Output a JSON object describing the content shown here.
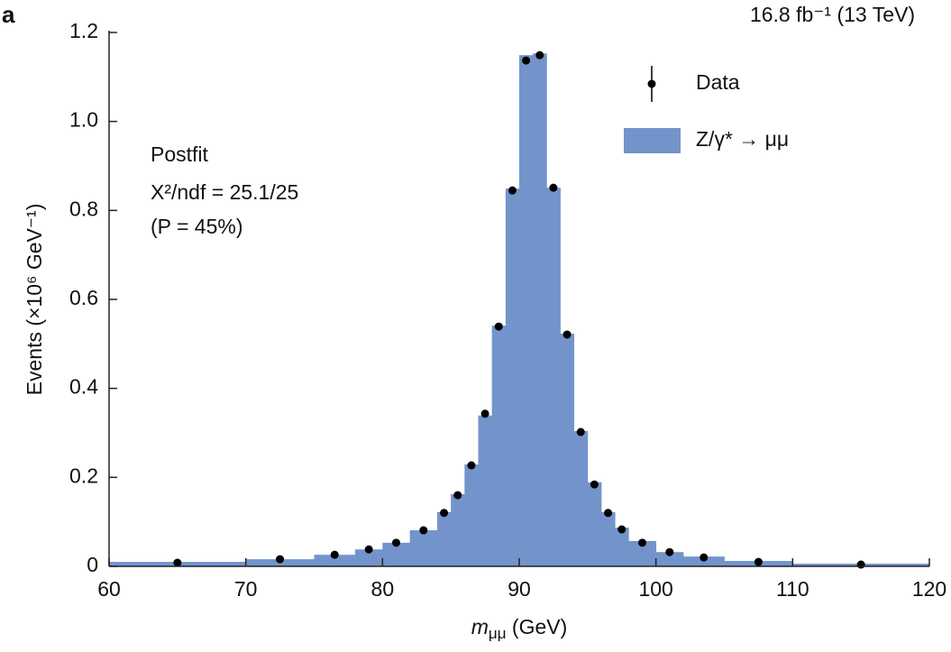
{
  "chart_data": {
    "type": "histogram",
    "panel_label": "a",
    "subtitle": "16.8 fb⁻¹ (13 TeV)",
    "y_label": "Events (×10⁶ GeV⁻¹)",
    "x_label": "m",
    "x_label_sub": "μμ",
    "x_label_unit": " (GeV)",
    "annotations": [
      "Postfit",
      "X²/ndf = 25.1/25",
      "(P = 45%)"
    ],
    "bins": [
      60,
      70,
      75,
      78,
      80,
      82,
      84,
      85,
      86,
      87,
      88,
      89,
      90,
      91,
      92,
      93,
      94,
      95,
      96,
      97,
      98,
      100,
      102,
      105,
      110,
      120
    ],
    "series": [
      {
        "name": "Z/γ* → μμ",
        "type": "histogram",
        "color": "#7394cb",
        "values": [
          0.01,
          0.016,
          0.026,
          0.038,
          0.053,
          0.081,
          0.122,
          0.162,
          0.229,
          0.339,
          0.541,
          0.849,
          1.149,
          1.153,
          0.851,
          0.523,
          0.304,
          0.189,
          0.122,
          0.087,
          0.057,
          0.032,
          0.022,
          0.012,
          0.006
        ]
      },
      {
        "name": "Data",
        "type": "points",
        "color": "#000000",
        "x": [
          65,
          72.5,
          76.5,
          79,
          81,
          83,
          84.5,
          85.5,
          86.5,
          87.5,
          88.5,
          89.5,
          90.5,
          91.5,
          92.5,
          93.5,
          94.5,
          95.5,
          96.5,
          97.5,
          99,
          101,
          103.5,
          107.5,
          115
        ],
        "values": [
          0.008,
          0.016,
          0.026,
          0.038,
          0.053,
          0.081,
          0.12,
          0.16,
          0.227,
          0.343,
          0.539,
          0.845,
          1.137,
          1.149,
          0.851,
          0.521,
          0.302,
          0.184,
          0.12,
          0.083,
          0.053,
          0.032,
          0.02,
          0.01,
          0.004
        ]
      }
    ],
    "xlim": [
      60,
      120
    ],
    "xticks": [
      60,
      70,
      80,
      90,
      100,
      110,
      120
    ],
    "ylim": [
      0,
      1.2
    ],
    "yticks": [
      0,
      0.2,
      0.4,
      0.6,
      {
        "value": 0.8,
        "label": "0.8"
      },
      {
        "value": 1.0,
        "label": "1.0"
      },
      1.2
    ],
    "legend": "upper right",
    "grid": false
  }
}
